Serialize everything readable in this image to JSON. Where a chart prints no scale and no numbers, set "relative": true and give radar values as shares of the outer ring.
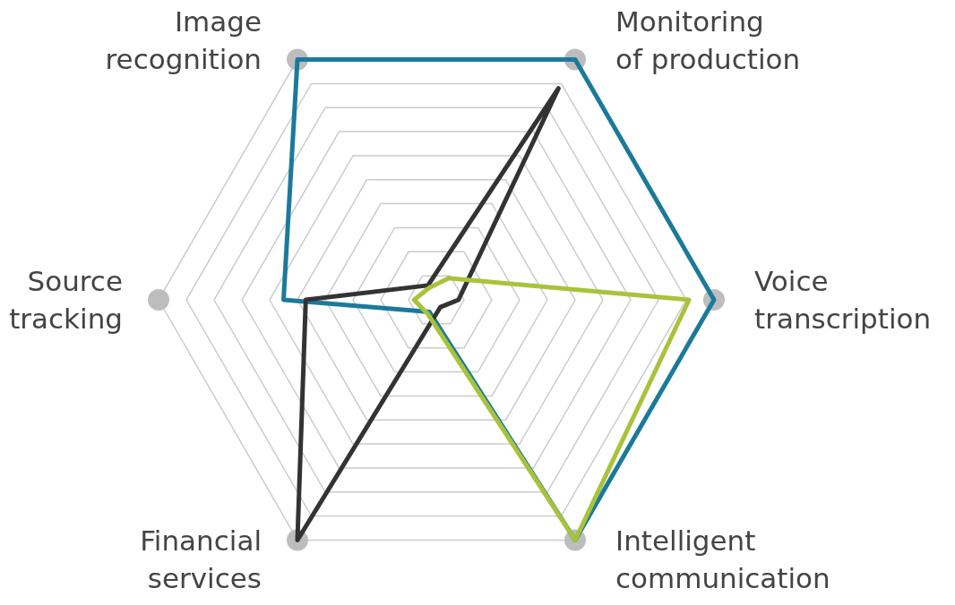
{
  "chart_data": {
    "type": "radar",
    "relative": true,
    "grid": true,
    "categories": [
      "Monitoring of production",
      "Voice transcription",
      "Intelligent communication",
      "Financial services",
      "Source tracking",
      "Image recognition"
    ],
    "series": [
      {
        "color": "#1b7a9b",
        "values": [
          1,
          1,
          1,
          0.05,
          0.55,
          1
        ]
      },
      {
        "color": "#333333",
        "values": [
          0.88,
          0.08,
          0.03,
          1,
          0.47,
          0.06
        ]
      },
      {
        "color": "#a8c33a",
        "values": [
          0.09,
          0.91,
          1,
          0.06,
          0.08,
          0.05
        ]
      }
    ]
  }
}
